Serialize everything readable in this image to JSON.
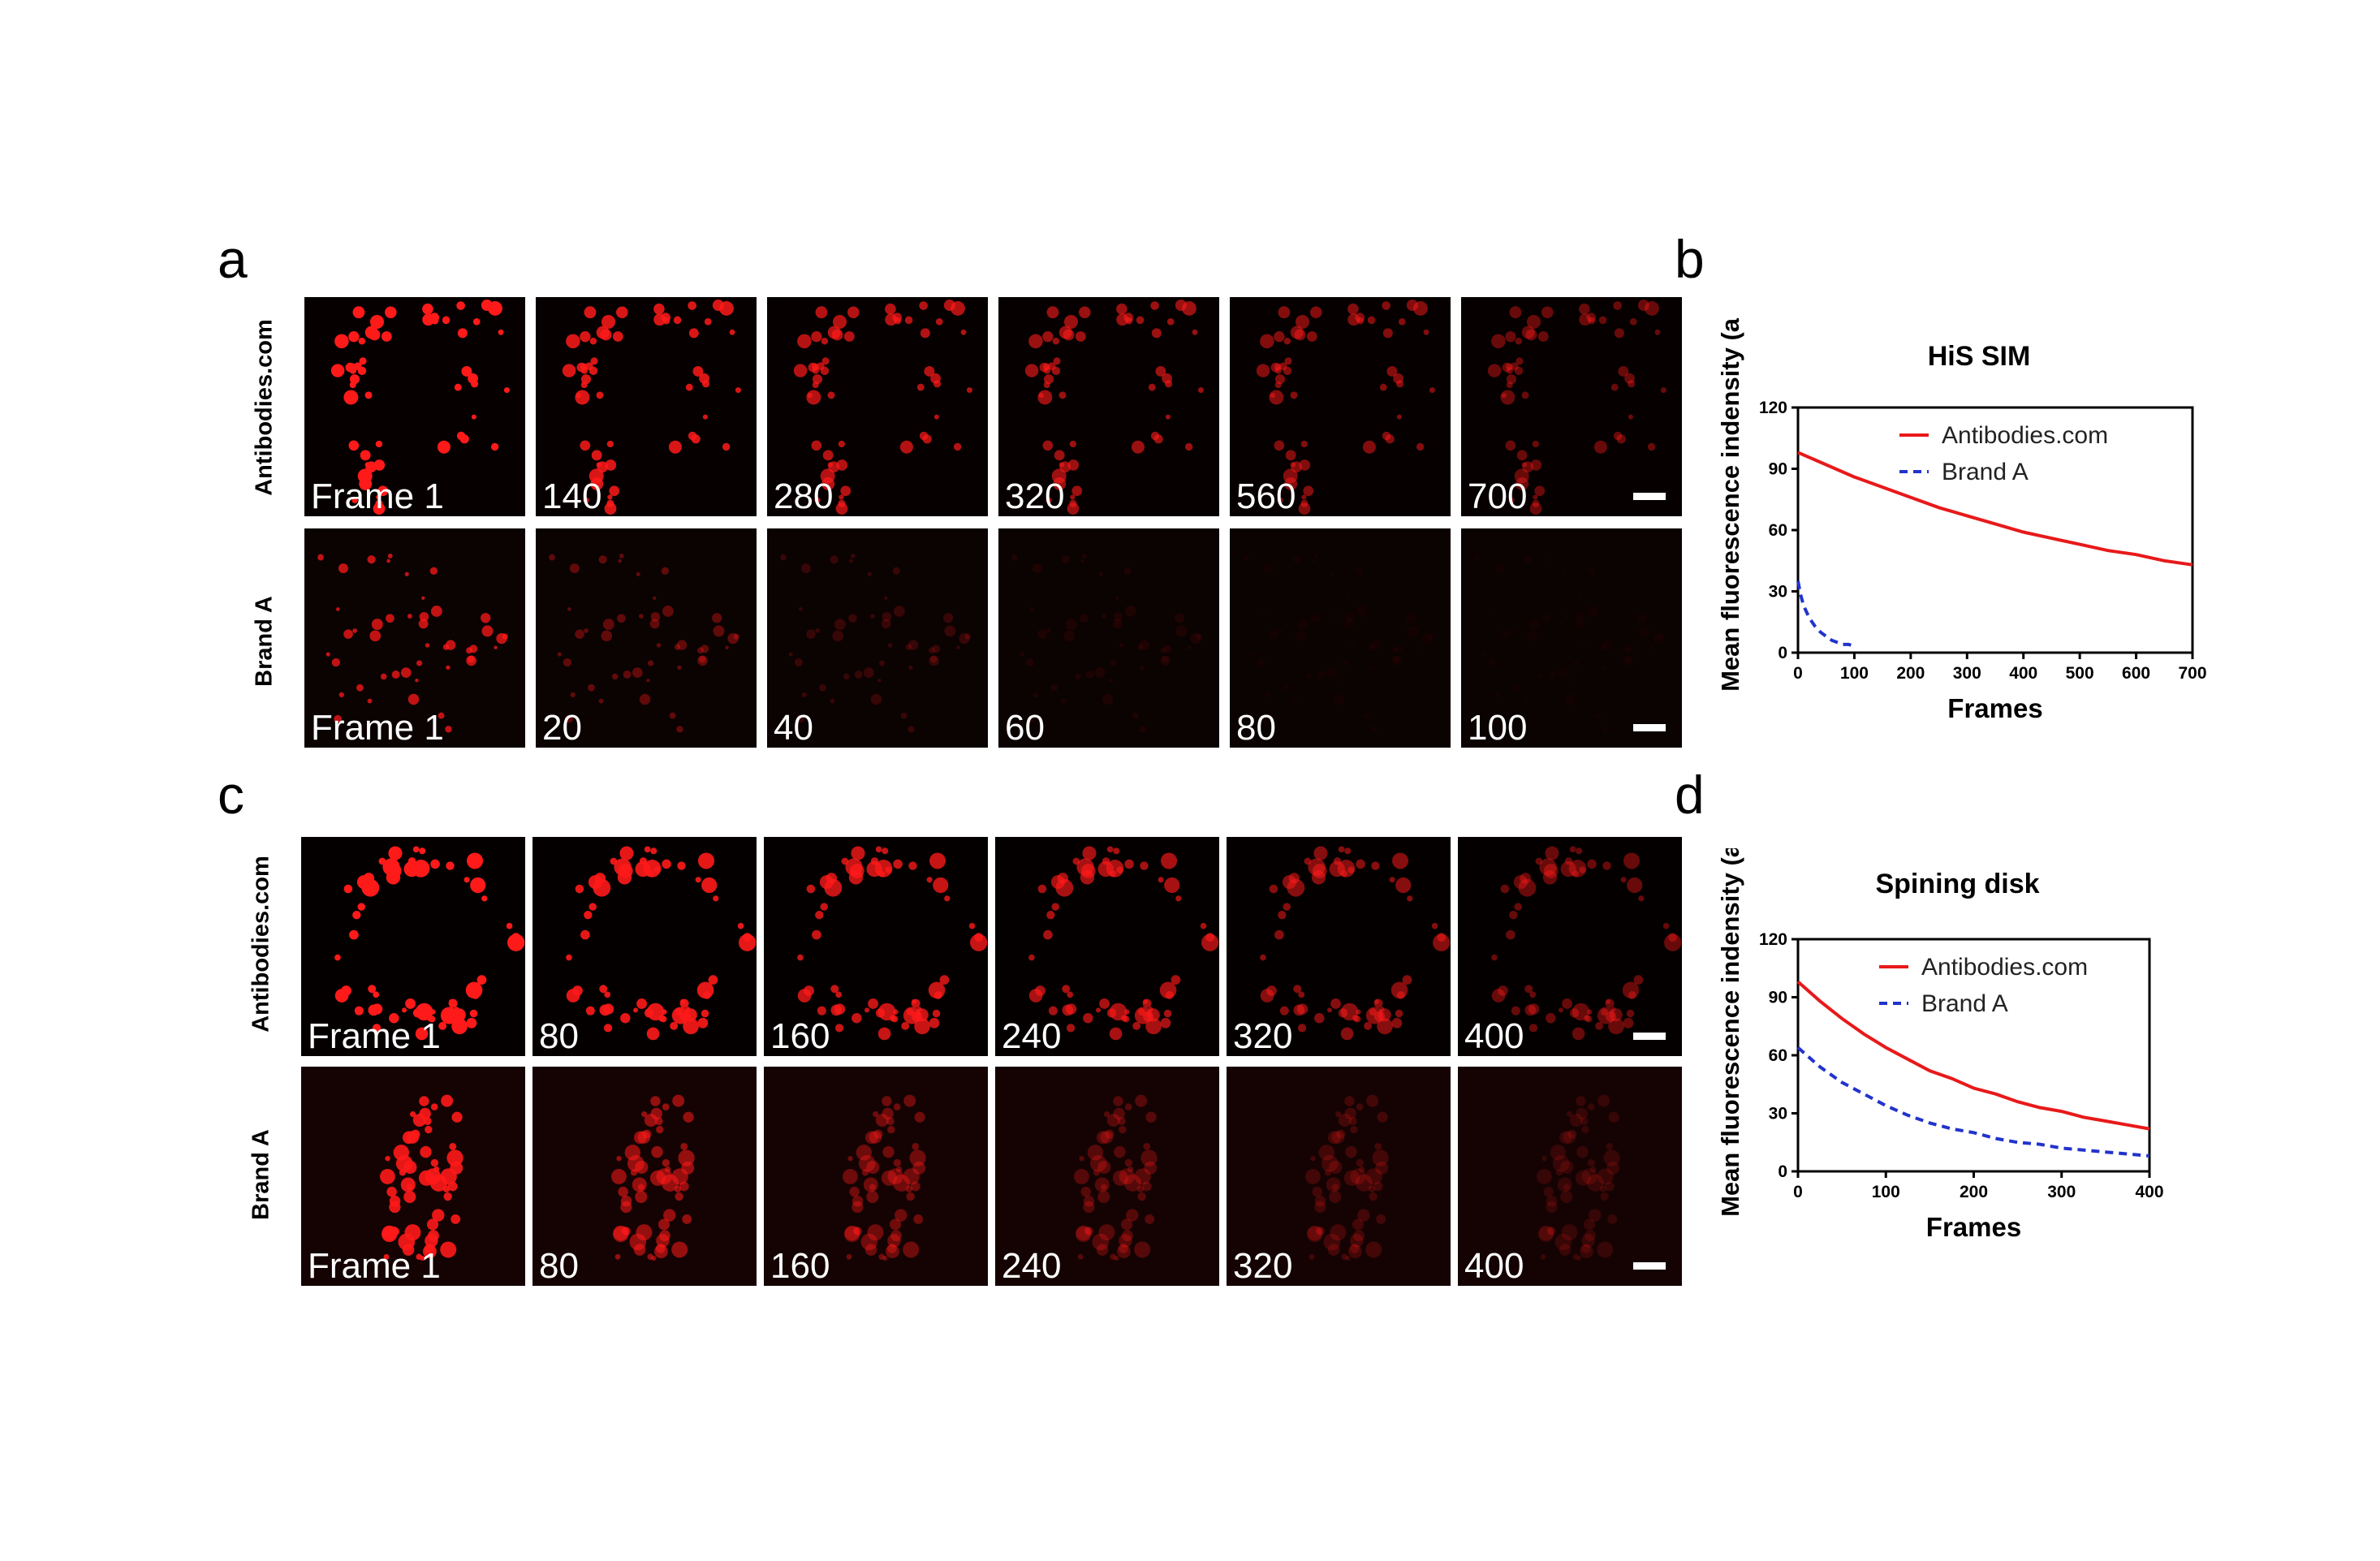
{
  "panels": {
    "a": "a",
    "b": "b",
    "c": "c",
    "d": "d"
  },
  "rows": {
    "a_top": {
      "label": "Antibodies.com",
      "frames": [
        "Frame 1",
        "140",
        "280",
        "320",
        "560",
        "700"
      ],
      "brightness": [
        1.0,
        0.85,
        0.7,
        0.6,
        0.5,
        0.4
      ]
    },
    "a_bottom": {
      "label": "Brand A",
      "frames": [
        "Frame 1",
        "20",
        "40",
        "60",
        "80",
        "100"
      ],
      "brightness": [
        0.75,
        0.35,
        0.18,
        0.08,
        0.04,
        0.02
      ]
    },
    "c_top": {
      "label": "Antibodies.com",
      "frames": [
        "Frame 1",
        "80",
        "160",
        "240",
        "320",
        "400"
      ],
      "brightness": [
        1.0,
        0.9,
        0.78,
        0.65,
        0.52,
        0.4
      ]
    },
    "c_bottom": {
      "label": "Brand A",
      "frames": [
        "Frame 1",
        "80",
        "160",
        "240",
        "320",
        "400"
      ],
      "brightness": [
        0.9,
        0.55,
        0.38,
        0.28,
        0.2,
        0.15
      ]
    }
  },
  "chart_data": [
    {
      "type": "line",
      "title": "HiS SIM",
      "xlabel": "Frames",
      "ylabel": "Mean fluorescence indensity (a.u)",
      "xlim": [
        0,
        700
      ],
      "ylim": [
        0,
        120
      ],
      "xticks": [
        0,
        100,
        200,
        300,
        400,
        500,
        600,
        700
      ],
      "yticks": [
        0,
        30,
        60,
        90,
        120
      ],
      "legend_position": "top-right",
      "series": [
        {
          "name": "Antibodies.com",
          "color": "#e8191a",
          "style": "solid",
          "x": [
            0,
            50,
            100,
            150,
            200,
            250,
            300,
            350,
            400,
            450,
            500,
            550,
            600,
            650,
            700
          ],
          "y": [
            98,
            92,
            86,
            81,
            76,
            71,
            67,
            63,
            59,
            56,
            53,
            50,
            48,
            45,
            43
          ]
        },
        {
          "name": "Brand A",
          "color": "#2233cc",
          "style": "dashed",
          "x": [
            0,
            5,
            10,
            20,
            30,
            40,
            50,
            60,
            70,
            80,
            90,
            100
          ],
          "y": [
            35,
            28,
            23,
            17,
            13,
            10,
            8,
            6,
            5,
            4,
            4,
            3
          ]
        }
      ]
    },
    {
      "type": "line",
      "title": "Spining disk",
      "xlabel": "Frames",
      "ylabel": "Mean fluorescence indensity (a.u)",
      "xlim": [
        0,
        400
      ],
      "ylim": [
        0,
        120
      ],
      "xticks": [
        0,
        100,
        200,
        300,
        400
      ],
      "yticks": [
        0,
        30,
        60,
        90,
        120
      ],
      "legend_position": "top-right",
      "series": [
        {
          "name": "Antibodies.com",
          "color": "#e8191a",
          "style": "solid",
          "x": [
            0,
            25,
            50,
            75,
            100,
            125,
            150,
            175,
            200,
            225,
            250,
            275,
            300,
            325,
            350,
            375,
            400
          ],
          "y": [
            98,
            88,
            79,
            71,
            64,
            58,
            52,
            48,
            43,
            40,
            36,
            33,
            31,
            28,
            26,
            24,
            22
          ]
        },
        {
          "name": "Brand A",
          "color": "#2233cc",
          "style": "dashed",
          "x": [
            0,
            25,
            50,
            75,
            100,
            125,
            150,
            175,
            200,
            225,
            250,
            275,
            300,
            325,
            350,
            375,
            400
          ],
          "y": [
            64,
            54,
            46,
            40,
            34,
            29,
            25,
            22,
            20,
            17,
            15,
            14,
            12,
            11,
            10,
            9,
            8
          ]
        }
      ]
    }
  ]
}
